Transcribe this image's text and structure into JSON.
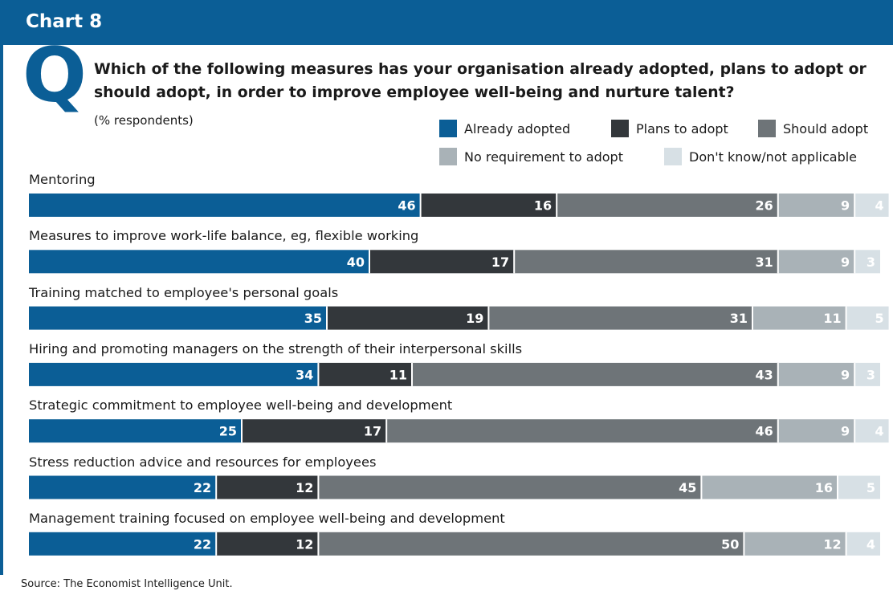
{
  "header": {
    "chart_label": "Chart 8",
    "q_letter": "Q",
    "question": "Which of the following measures has your organisation already adopted, plans to adopt or should adopt, in order to improve employee well-being and nurture talent?",
    "units": "(% respondents)"
  },
  "source": "Source: The Economist Intelligence Unit.",
  "colors": {
    "brand": "#0b5e96",
    "already": "#0b5e96",
    "plans": "#33373b",
    "should": "#6e7478",
    "norequire": "#a9b2b7",
    "dontknow": "#d7e0e5"
  },
  "chart_data": {
    "type": "bar",
    "orientation": "horizontal",
    "stacked": true,
    "xlim": [
      0,
      100
    ],
    "title": "Which of the following measures has your organisation already adopted, plans to adopt or should adopt, in order to improve employee well-being and nurture talent?",
    "units": "(% respondents)",
    "legend_position": "top-right",
    "categories": [
      "Mentoring",
      "Measures to improve work-life balance, eg, flexible working",
      "Training matched to employee's personal goals",
      "Hiring and promoting managers on the strength of their interpersonal skills",
      "Strategic commitment to employee well-being and development",
      "Stress reduction advice and resources for employees",
      "Management training focused on employee well-being and development"
    ],
    "series": [
      {
        "name": "Already adopted",
        "color": "#0b5e96",
        "values": [
          46,
          40,
          35,
          34,
          25,
          22,
          22
        ]
      },
      {
        "name": "Plans to adopt",
        "color": "#33373b",
        "values": [
          16,
          17,
          19,
          11,
          17,
          12,
          12
        ]
      },
      {
        "name": "Should adopt",
        "color": "#6e7478",
        "values": [
          26,
          31,
          31,
          43,
          46,
          45,
          50
        ]
      },
      {
        "name": "No requirement to adopt",
        "color": "#a9b2b7",
        "values": [
          9,
          9,
          11,
          9,
          9,
          16,
          12
        ]
      },
      {
        "name": "Don't know/not applicable",
        "color": "#d7e0e5",
        "values": [
          4,
          3,
          5,
          3,
          4,
          5,
          4
        ]
      }
    ]
  }
}
